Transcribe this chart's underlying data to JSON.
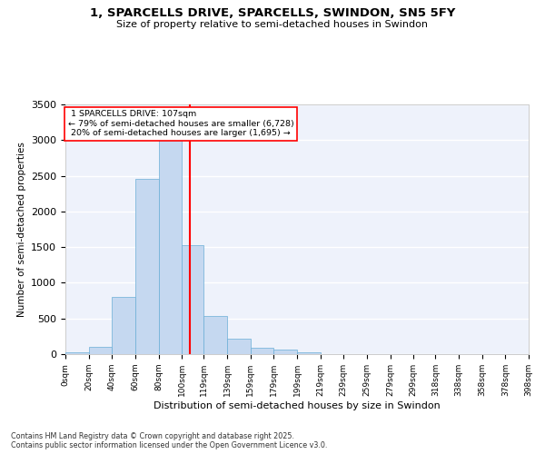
{
  "title_line1": "1, SPARCELLS DRIVE, SPARCELLS, SWINDON, SN5 5FY",
  "title_line2": "Size of property relative to semi-detached houses in Swindon",
  "xlabel": "Distribution of semi-detached houses by size in Swindon",
  "ylabel": "Number of semi-detached properties",
  "property_size": 107,
  "property_label": "1 SPARCELLS DRIVE: 107sqm",
  "pct_smaller": 79,
  "count_smaller": 6728,
  "pct_larger": 20,
  "count_larger": 1695,
  "annotation_type": "semi-detached",
  "bin_edges": [
    0,
    20,
    40,
    60,
    80,
    100,
    119,
    139,
    159,
    179,
    199,
    219,
    239,
    259,
    279,
    299,
    318,
    338,
    358,
    378,
    398
  ],
  "bar_heights": [
    30,
    100,
    800,
    2450,
    3300,
    1530,
    530,
    220,
    90,
    60,
    30,
    5,
    3,
    2,
    1,
    1,
    0,
    0,
    0,
    0
  ],
  "bar_color": "#c5d8f0",
  "bar_edge_color": "#6aaed6",
  "vline_x": 107,
  "vline_color": "red",
  "background_color": "#eef2fb",
  "grid_color": "white",
  "ylim": [
    0,
    3500
  ],
  "yticks": [
    0,
    500,
    1000,
    1500,
    2000,
    2500,
    3000,
    3500
  ],
  "footer_line1": "Contains HM Land Registry data © Crown copyright and database right 2025.",
  "footer_line2": "Contains public sector information licensed under the Open Government Licence v3.0.",
  "tick_labels": [
    "0sqm",
    "20sqm",
    "40sqm",
    "60sqm",
    "80sqm",
    "100sqm",
    "119sqm",
    "139sqm",
    "159sqm",
    "179sqm",
    "199sqm",
    "219sqm",
    "239sqm",
    "259sqm",
    "279sqm",
    "299sqm",
    "318sqm",
    "338sqm",
    "358sqm",
    "378sqm",
    "398sqm"
  ]
}
